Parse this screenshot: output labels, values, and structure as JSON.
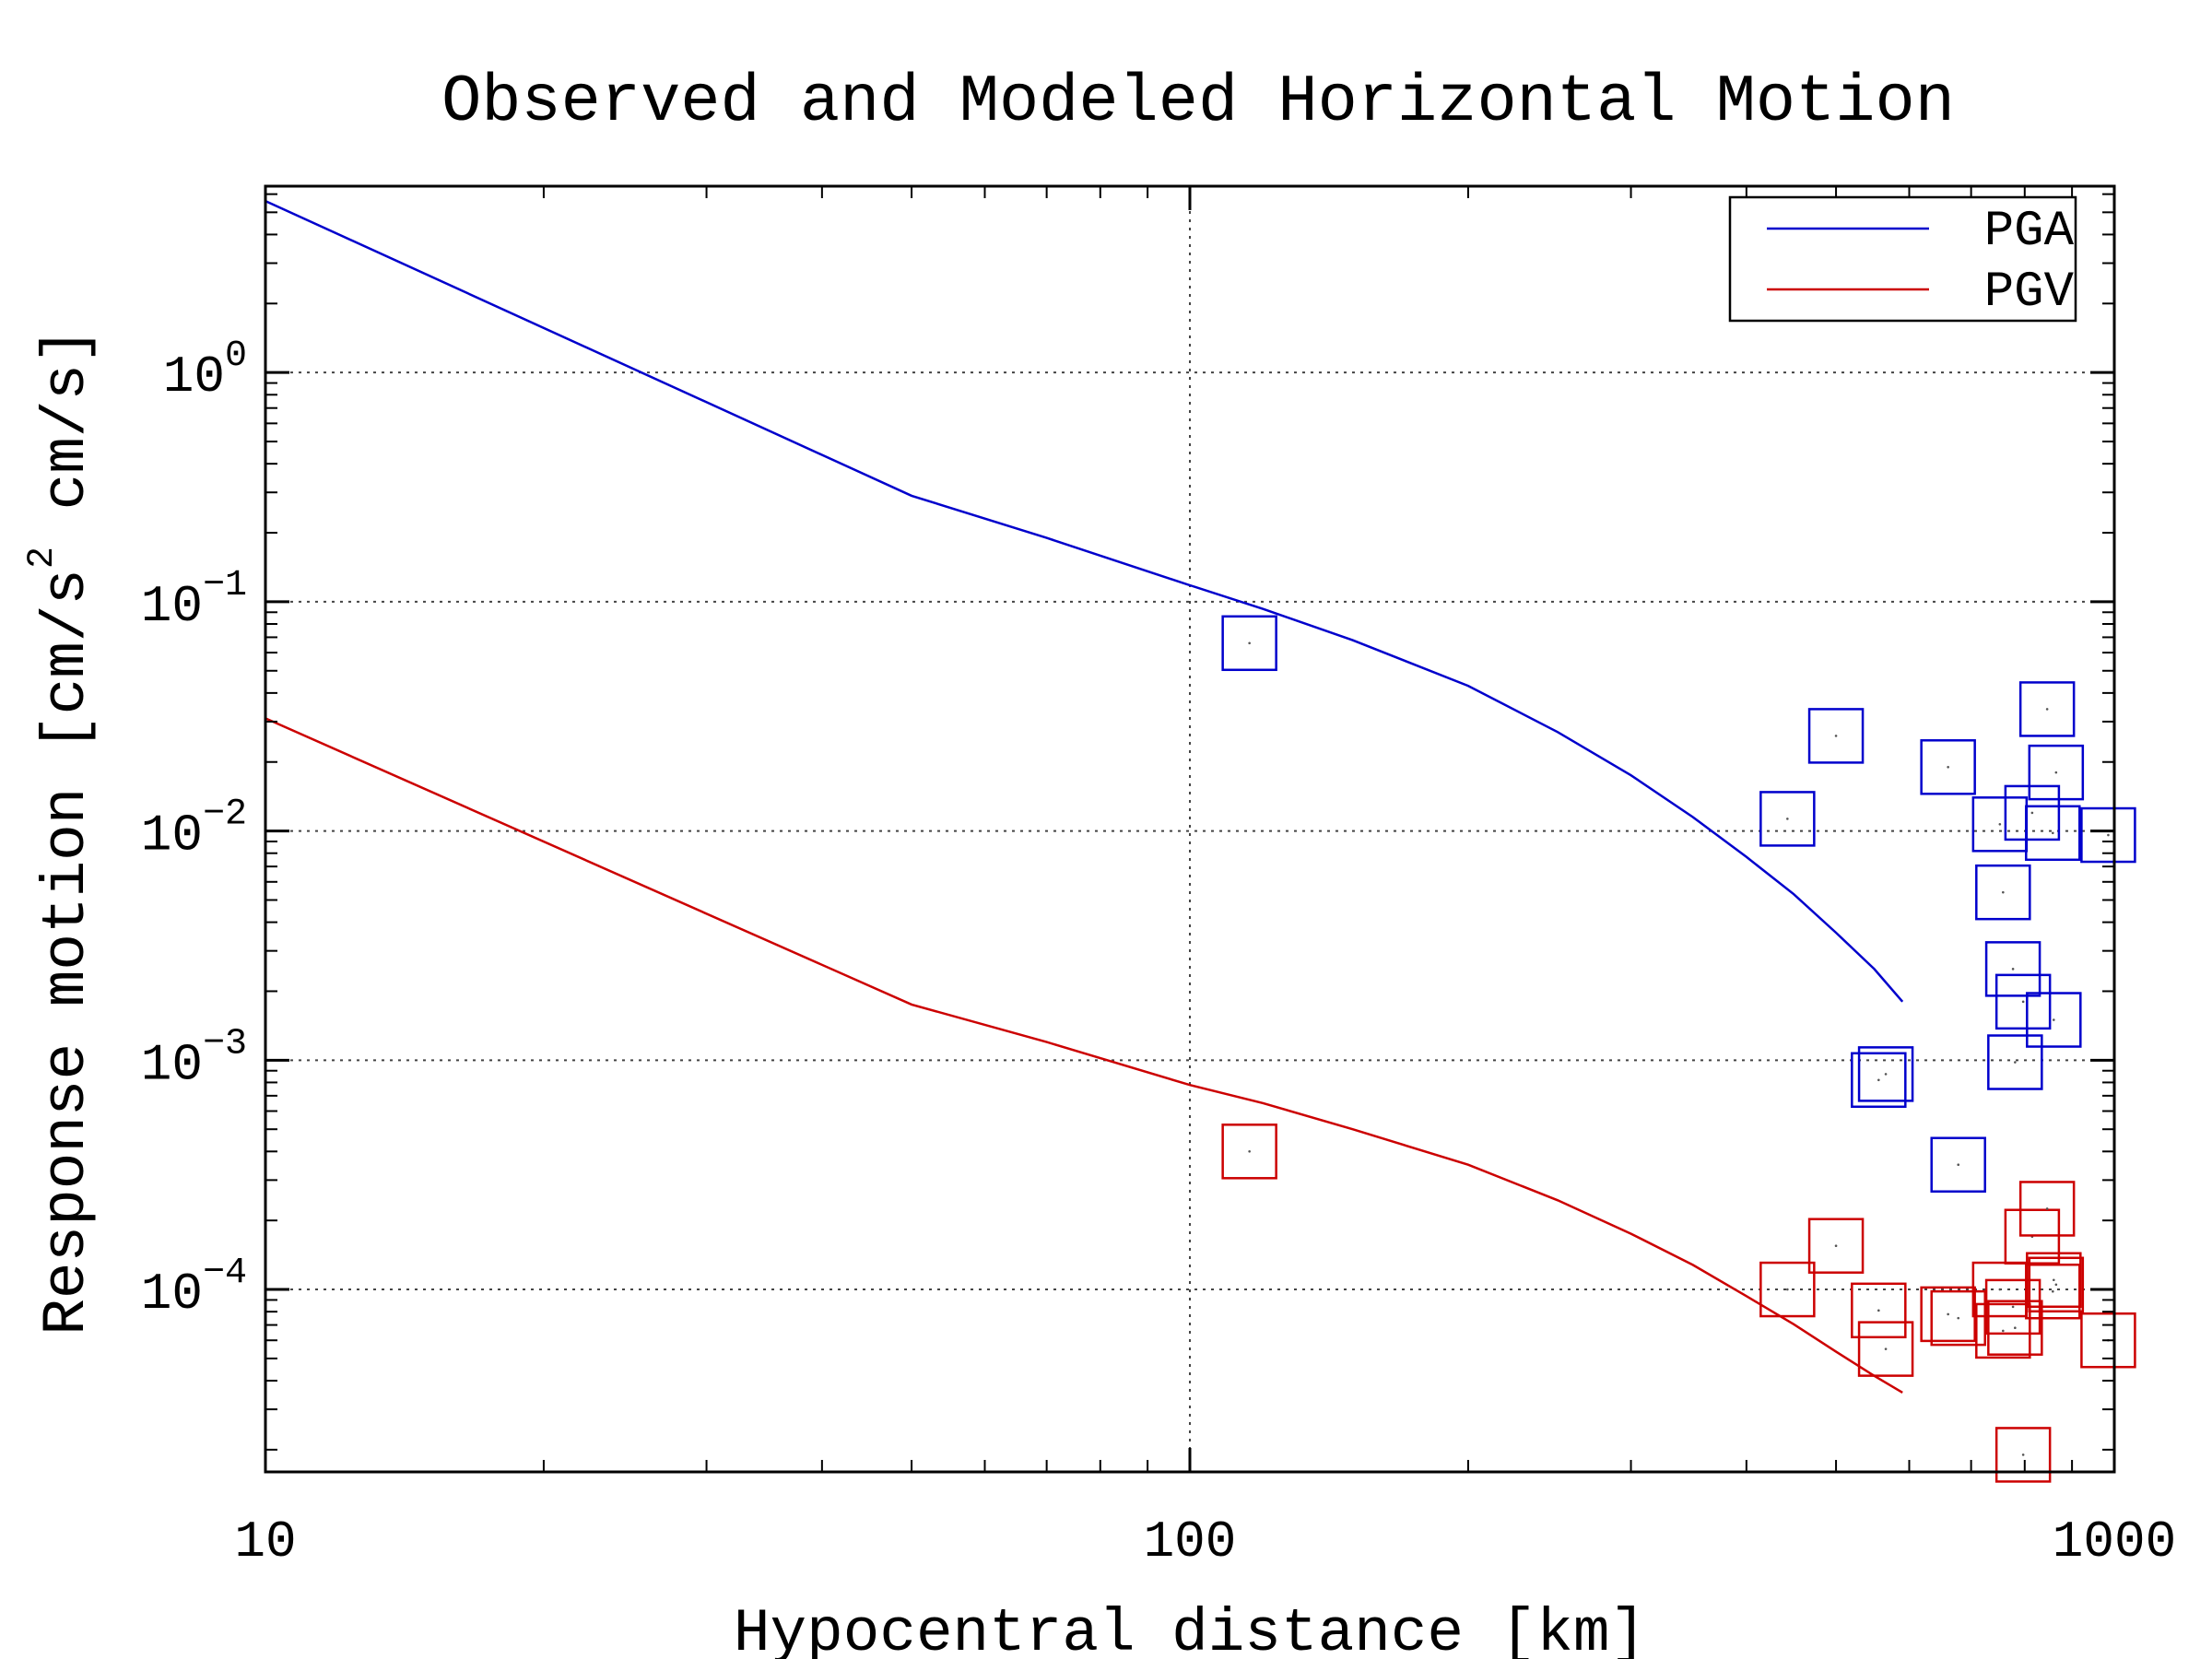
{
  "chart_data": {
    "type": "line",
    "title": "Observed and Modeled Horizontal Motion",
    "xlabel": "Hypocentral distance [km]",
    "ylabel_main": "Response motion  [cm/s",
    "ylabel_sup": "2",
    "ylabel_tail": "  cm/s]",
    "x_scale": "log",
    "y_scale": "log",
    "xlim": [
      10,
      1000
    ],
    "ylim": [
      1.6e-05,
      6.5
    ],
    "grid": true,
    "legend_position": "top-right",
    "x_ticks": [
      {
        "value": 10,
        "label": "10"
      },
      {
        "value": 100,
        "label": "100"
      },
      {
        "value": 1000,
        "label": "1000"
      }
    ],
    "y_ticks": [
      {
        "value": 1,
        "base": "10",
        "exp": "0"
      },
      {
        "value": 0.1,
        "base": "10",
        "exp": "−1"
      },
      {
        "value": 0.01,
        "base": "10",
        "exp": "−2"
      },
      {
        "value": 0.001,
        "base": "10",
        "exp": "−3"
      },
      {
        "value": 0.0001,
        "base": "10",
        "exp": "−4"
      }
    ],
    "series": [
      {
        "name": "PGA",
        "color": "#0000cc",
        "x": [
          10,
          50,
          70,
          100,
          120,
          150,
          200,
          250,
          300,
          350,
          400,
          450,
          500,
          550,
          590
        ],
        "y": [
          5.6,
          0.29,
          0.19,
          0.118,
          0.093,
          0.068,
          0.043,
          0.027,
          0.0175,
          0.0115,
          0.0077,
          0.0053,
          0.0036,
          0.0025,
          0.0018
        ]
      },
      {
        "name": "PGV",
        "color": "#cc0000",
        "x": [
          10,
          50,
          70,
          100,
          120,
          150,
          200,
          250,
          300,
          350,
          400,
          450,
          500,
          550,
          590
        ],
        "y": [
          0.031,
          0.00175,
          0.0012,
          0.00078,
          0.00065,
          0.0005,
          0.00035,
          0.000245,
          0.000175,
          0.000128,
          9.35e-05,
          7.05e-05,
          5.35e-05,
          4.2e-05,
          3.55e-05
        ]
      }
    ],
    "observed_pga": {
      "color": "#0000cc",
      "points": [
        [
          116,
          0.066
        ],
        [
          443,
          0.0113
        ],
        [
          500,
          0.026
        ],
        [
          556,
          0.00082
        ],
        [
          566,
          0.00087
        ],
        [
          661,
          0.019
        ],
        [
          678,
          0.00035
        ],
        [
          752,
          0.0107
        ],
        [
          758,
          0.0054
        ],
        [
          777,
          0.0025
        ],
        [
          781,
          0.00098
        ],
        [
          797,
          0.0018
        ],
        [
          815,
          0.012
        ],
        [
          846,
          0.034
        ],
        [
          858,
          0.0098
        ],
        [
          860,
          0.0015
        ],
        [
          865,
          0.018
        ],
        [
          985,
          0.0096
        ]
      ]
    },
    "observed_pgv": {
      "color": "#cc0000",
      "points": [
        [
          116,
          0.0004
        ],
        [
          443,
          0.0001
        ],
        [
          500,
          0.000155
        ],
        [
          556,
          8.1e-05
        ],
        [
          566,
          5.5e-05
        ],
        [
          661,
          7.8e-05
        ],
        [
          678,
          7.5e-05
        ],
        [
          752,
          0.0001
        ],
        [
          758,
          6.6e-05
        ],
        [
          777,
          8.4e-05
        ],
        [
          781,
          6.8e-05
        ],
        [
          797,
          1.9e-05
        ],
        [
          815,
          0.00017
        ],
        [
          846,
          0.000225
        ],
        [
          858,
          9.8e-05
        ],
        [
          860,
          0.00011
        ],
        [
          865,
          0.000105
        ],
        [
          985,
          6e-05
        ]
      ]
    }
  }
}
